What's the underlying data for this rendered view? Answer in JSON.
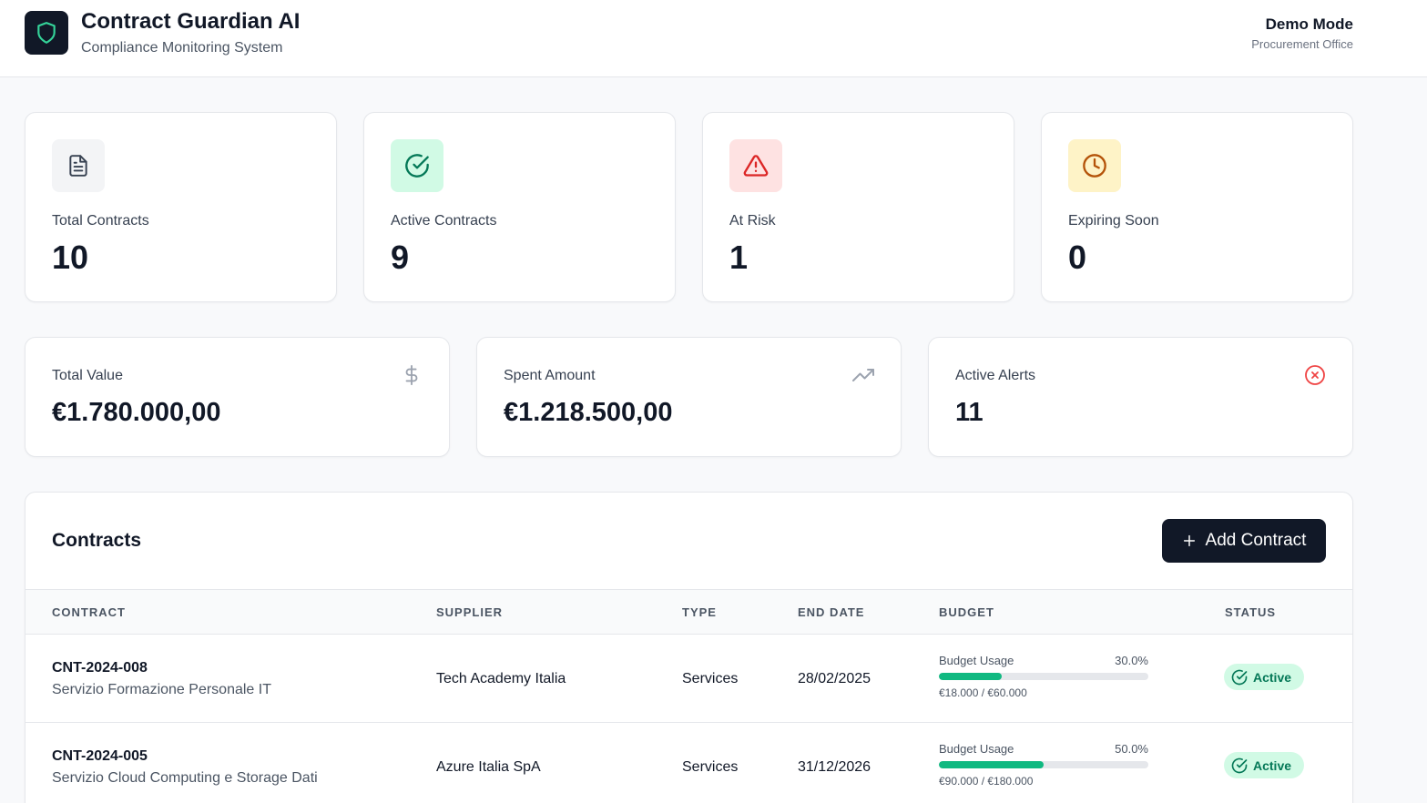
{
  "header": {
    "title": "Contract Guardian AI",
    "subtitle": "Compliance Monitoring System",
    "mode": "Demo Mode",
    "office": "Procurement Office"
  },
  "stats": [
    {
      "label": "Total Contracts",
      "value": "10",
      "icon": "document-icon",
      "bg": "#f3f4f6",
      "color": "#374151"
    },
    {
      "label": "Active Contracts",
      "value": "9",
      "icon": "check-circle-icon",
      "bg": "#d1fae5",
      "color": "#047857"
    },
    {
      "label": "At Risk",
      "value": "1",
      "icon": "warning-triangle-icon",
      "bg": "#fee2e2",
      "color": "#dc2626"
    },
    {
      "label": "Expiring Soon",
      "value": "0",
      "icon": "clock-icon",
      "bg": "#fef3c7",
      "color": "#b45309"
    }
  ],
  "summary": [
    {
      "label": "Total Value",
      "value": "€1.780.000,00",
      "icon": "dollar-icon"
    },
    {
      "label": "Spent Amount",
      "value": "€1.218.500,00",
      "icon": "trending-up-icon"
    },
    {
      "label": "Active Alerts",
      "value": "11",
      "icon": "x-circle-icon"
    }
  ],
  "contracts": {
    "title": "Contracts",
    "add_label": "Add Contract",
    "columns": [
      "CONTRACT",
      "SUPPLIER",
      "TYPE",
      "END DATE",
      "BUDGET",
      "STATUS"
    ],
    "budget_label": "Budget Usage",
    "rows": [
      {
        "id": "CNT-2024-008",
        "name": "Servizio Formazione Personale IT",
        "supplier": "Tech Academy Italia",
        "type": "Services",
        "end_date": "28/02/2025",
        "usage": "30.0%",
        "usage_fraction": 0.3,
        "amount": "€18.000 / €60.000",
        "status": "Active"
      },
      {
        "id": "CNT-2024-005",
        "name": "Servizio Cloud Computing e Storage Dati",
        "supplier": "Azure Italia SpA",
        "type": "Services",
        "end_date": "31/12/2026",
        "usage": "50.0%",
        "usage_fraction": 0.5,
        "amount": "€90.000 / €180.000",
        "status": "Active"
      }
    ]
  },
  "colors": {
    "accent": "#111827",
    "success": "#10b981",
    "status_bg": "#d1fae5",
    "alert": "#ef4444"
  }
}
